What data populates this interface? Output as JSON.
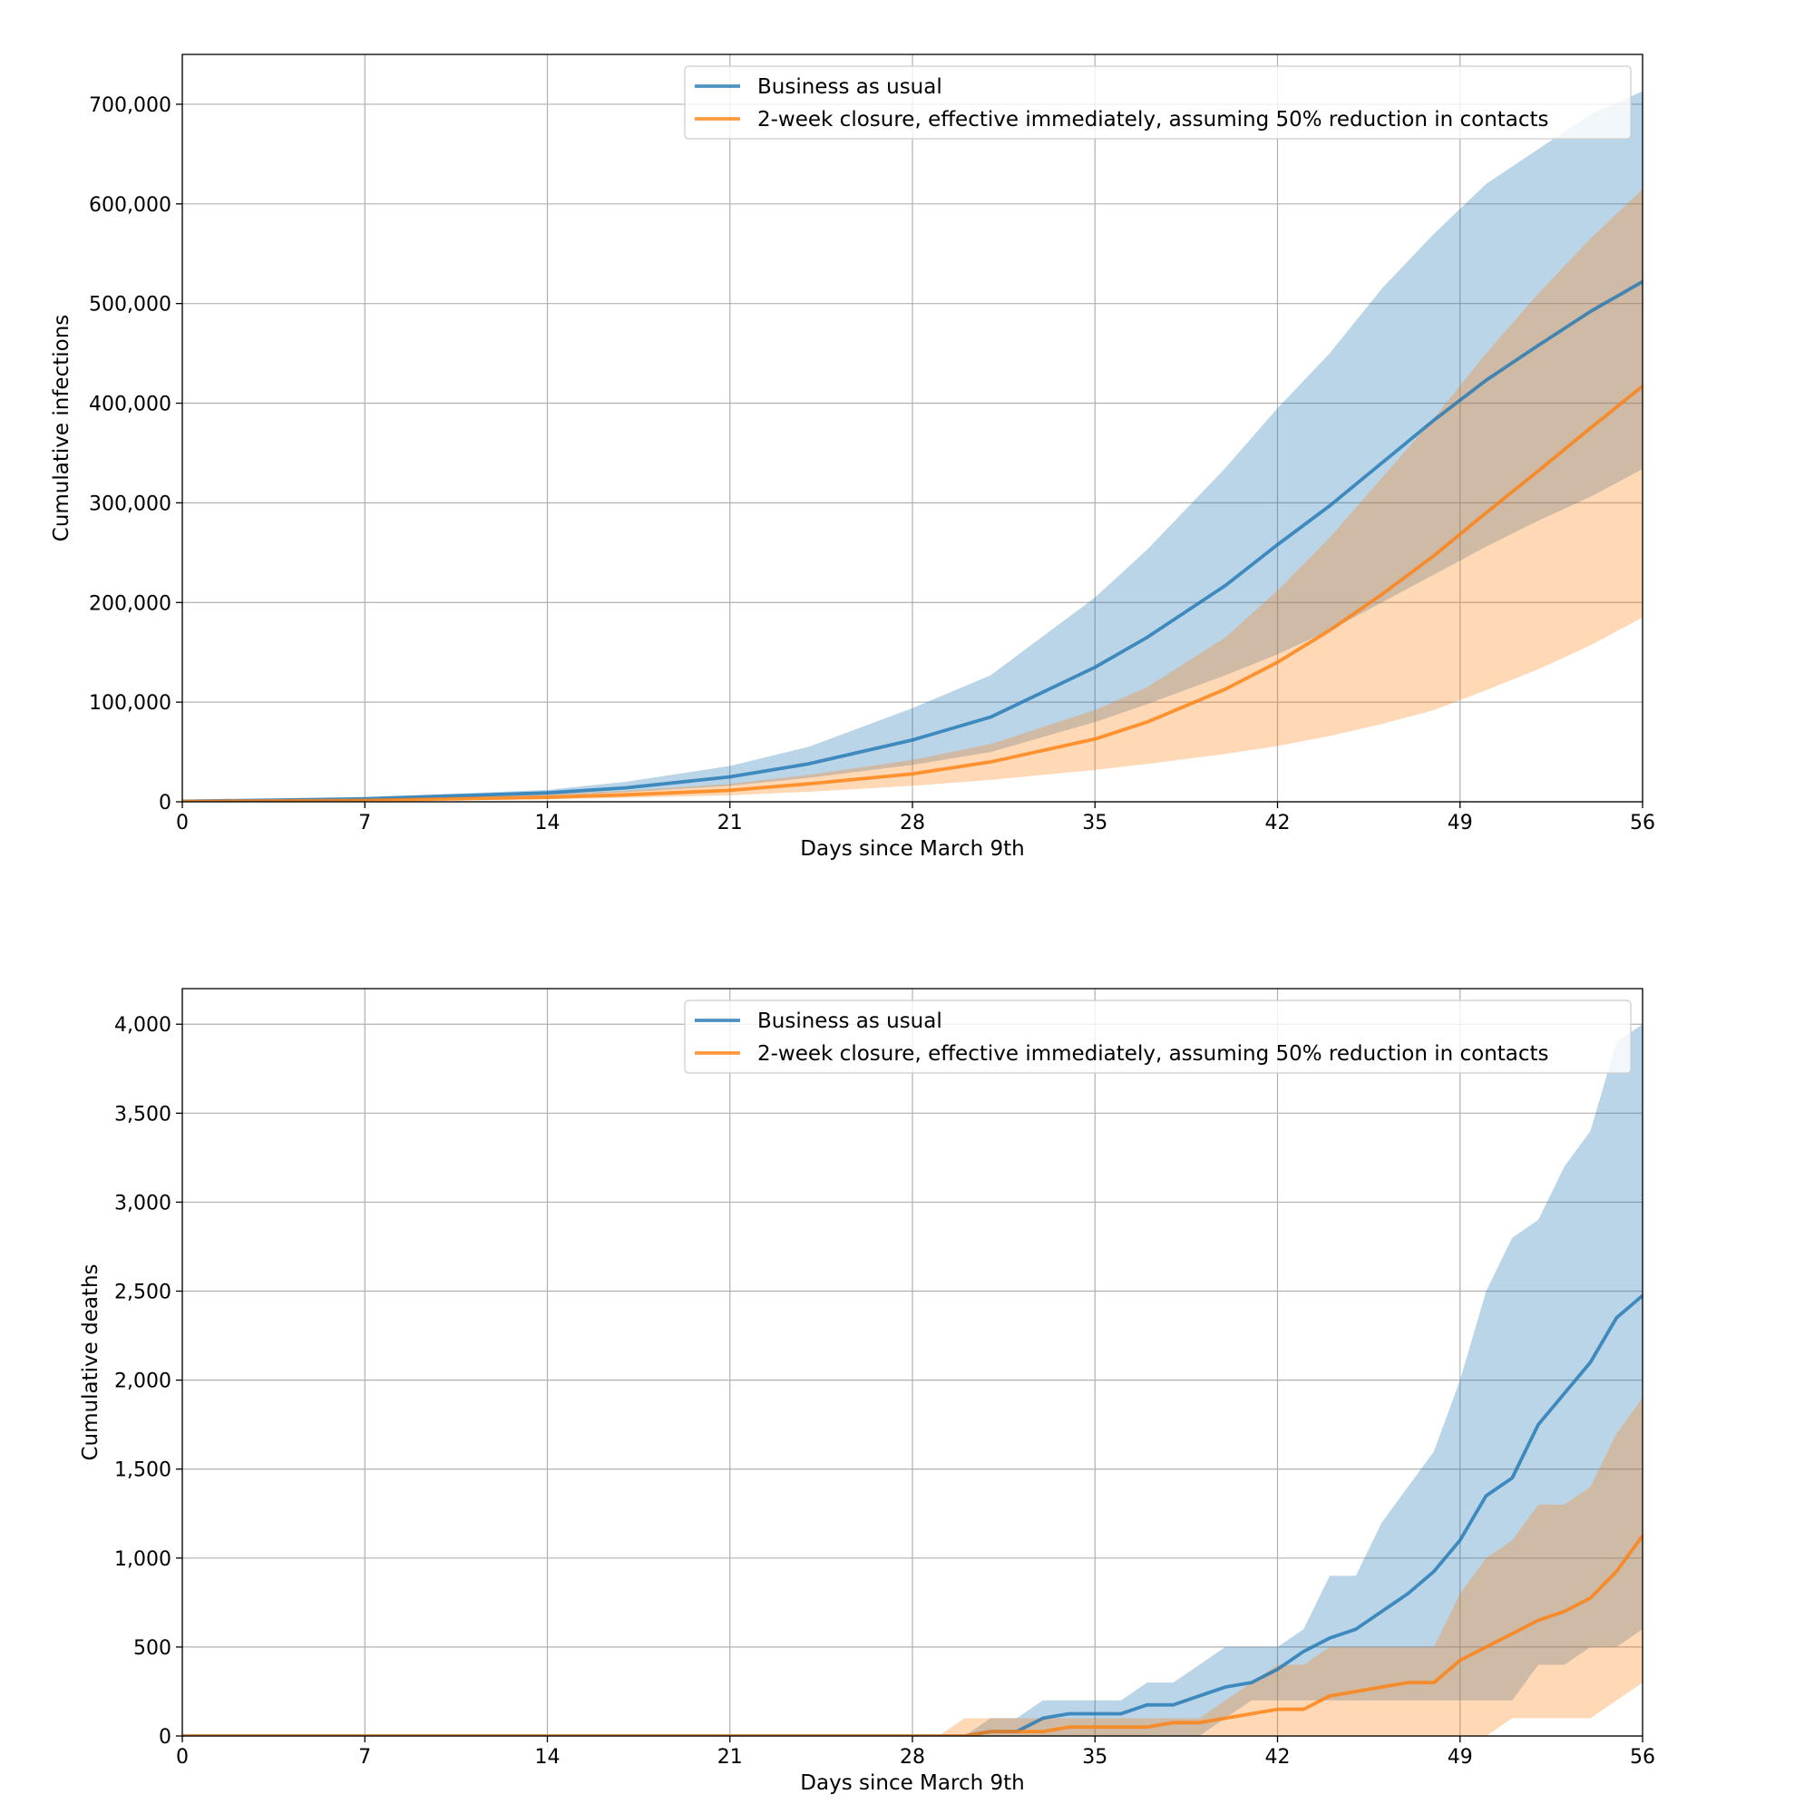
{
  "colors": {
    "business": "#1f77b4",
    "closure": "#ff7f0e",
    "grid": "#b0b0b0",
    "axis": "#000000"
  },
  "chart_data": [
    {
      "type": "line",
      "ylabel": "Cumulative infections",
      "xlabel": "Days since March 9th",
      "xlim": [
        0,
        56
      ],
      "ylim": [
        0,
        750000
      ],
      "xticks": [
        0,
        7,
        14,
        21,
        28,
        35,
        42,
        49,
        56
      ],
      "yticks": [
        0,
        100000,
        200000,
        300000,
        400000,
        500000,
        600000,
        700000
      ],
      "ytick_labels": [
        "0",
        "100,000",
        "200,000",
        "300,000",
        "400,000",
        "500,000",
        "600,000",
        "700,000"
      ],
      "grid": true,
      "legend": "top-right",
      "series": [
        {
          "name": "Business as usual",
          "color": "#1f77b4",
          "x": [
            0,
            7,
            14,
            17,
            21,
            24,
            28,
            31,
            35,
            37,
            40,
            42,
            44,
            46,
            48,
            50,
            52,
            54,
            56
          ],
          "values": [
            500,
            3000,
            9000,
            14000,
            25000,
            38000,
            62000,
            85000,
            135000,
            165000,
            217000,
            258000,
            297000,
            340000,
            383000,
            423000,
            458000,
            492000,
            522000
          ],
          "upper": [
            1000,
            4500,
            12000,
            20000,
            36000,
            55000,
            94000,
            127000,
            205000,
            253000,
            335000,
            395000,
            450000,
            515000,
            570000,
            620000,
            655000,
            690000,
            713000
          ],
          "lower": [
            200,
            2000,
            6000,
            9500,
            16000,
            24000,
            37000,
            50000,
            80000,
            98000,
            127000,
            148000,
            172000,
            200000,
            228000,
            256000,
            282000,
            306000,
            334000
          ]
        },
        {
          "name": "2-week closure, effective immediately, assuming 50% reduction in contacts",
          "color": "#ff7f0e",
          "x": [
            0,
            7,
            14,
            17,
            21,
            24,
            28,
            31,
            35,
            37,
            40,
            42,
            44,
            46,
            48,
            50,
            52,
            54,
            56
          ],
          "values": [
            300,
            1500,
            4500,
            7000,
            11500,
            18000,
            28000,
            40000,
            63000,
            80000,
            113000,
            140000,
            172000,
            208000,
            247000,
            290000,
            332000,
            375000,
            417000
          ],
          "upper": [
            600,
            2500,
            7500,
            11000,
            18000,
            27000,
            42000,
            58000,
            92000,
            115000,
            165000,
            212000,
            265000,
            325000,
            385000,
            450000,
            510000,
            565000,
            615000
          ],
          "lower": [
            100,
            800,
            2500,
            4000,
            6500,
            10000,
            16000,
            22000,
            32000,
            38000,
            48000,
            56000,
            66000,
            78000,
            92000,
            112000,
            133000,
            157000,
            185000
          ]
        }
      ]
    },
    {
      "type": "line",
      "ylabel": "Cumulative deaths",
      "xlabel": "Days since March 9th",
      "xlim": [
        0,
        56
      ],
      "ylim": [
        0,
        4200
      ],
      "xticks": [
        0,
        7,
        14,
        21,
        28,
        35,
        42,
        49,
        56
      ],
      "yticks": [
        0,
        500,
        1000,
        1500,
        2000,
        2500,
        3000,
        3500,
        4000
      ],
      "ytick_labels": [
        "0",
        "500",
        "1,000",
        "1,500",
        "2,000",
        "2,500",
        "3,000",
        "3,500",
        "4,000"
      ],
      "grid": true,
      "legend": "top-right",
      "series": [
        {
          "name": "Business as usual",
          "color": "#1f77b4",
          "x": [
            0,
            28,
            29,
            30,
            31,
            32,
            33,
            34,
            35,
            36,
            37,
            38,
            39,
            40,
            41,
            42,
            43,
            44,
            45,
            46,
            47,
            48,
            49,
            50,
            51,
            52,
            53,
            54,
            55,
            56
          ],
          "values": [
            0,
            0,
            0,
            0,
            25,
            25,
            100,
            125,
            125,
            125,
            175,
            175,
            225,
            275,
            300,
            375,
            475,
            550,
            600,
            700,
            800,
            925,
            1100,
            1350,
            1450,
            1750,
            1925,
            2100,
            2350,
            2475
          ],
          "upper": [
            0,
            0,
            0,
            0,
            100,
            100,
            200,
            200,
            200,
            200,
            300,
            300,
            400,
            500,
            500,
            500,
            600,
            900,
            900,
            1200,
            1400,
            1600,
            2000,
            2500,
            2800,
            2900,
            3200,
            3400,
            3900,
            4000
          ],
          "lower": [
            0,
            0,
            0,
            0,
            0,
            0,
            0,
            0,
            0,
            0,
            0,
            0,
            0,
            100,
            200,
            200,
            200,
            200,
            200,
            200,
            200,
            200,
            200,
            200,
            200,
            400,
            400,
            500,
            500,
            600
          ]
        },
        {
          "name": "2-week closure, effective immediately, assuming 50% reduction in contacts",
          "color": "#ff7f0e",
          "x": [
            0,
            28,
            29,
            30,
            31,
            32,
            33,
            34,
            35,
            36,
            37,
            38,
            39,
            40,
            41,
            42,
            43,
            44,
            45,
            46,
            47,
            48,
            49,
            50,
            51,
            52,
            53,
            54,
            55,
            56
          ],
          "values": [
            0,
            0,
            0,
            0,
            25,
            25,
            25,
            50,
            50,
            50,
            50,
            75,
            75,
            100,
            125,
            150,
            150,
            225,
            250,
            275,
            300,
            300,
            425,
            500,
            575,
            650,
            700,
            775,
            925,
            1125
          ],
          "upper": [
            0,
            0,
            0,
            100,
            100,
            100,
            100,
            100,
            100,
            100,
            100,
            100,
            100,
            200,
            300,
            400,
            400,
            500,
            500,
            500,
            500,
            500,
            800,
            1000,
            1100,
            1300,
            1300,
            1400,
            1700,
            1900
          ],
          "lower": [
            0,
            0,
            0,
            0,
            0,
            0,
            0,
            0,
            0,
            0,
            0,
            0,
            0,
            0,
            0,
            0,
            0,
            0,
            0,
            0,
            0,
            0,
            0,
            0,
            100,
            100,
            100,
            100,
            200,
            300
          ]
        }
      ]
    }
  ]
}
